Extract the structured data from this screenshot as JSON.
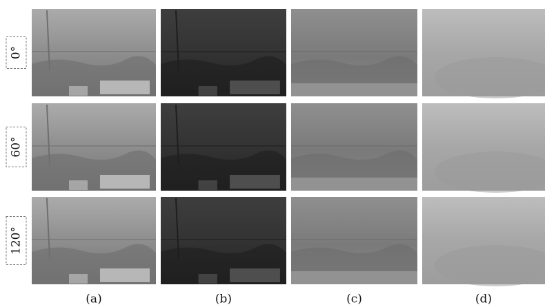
{
  "row_labels": [
    "0°",
    "60°",
    "120°"
  ],
  "column_labels": [
    "(a)",
    "(b)",
    "(c)",
    "(d)"
  ]
}
